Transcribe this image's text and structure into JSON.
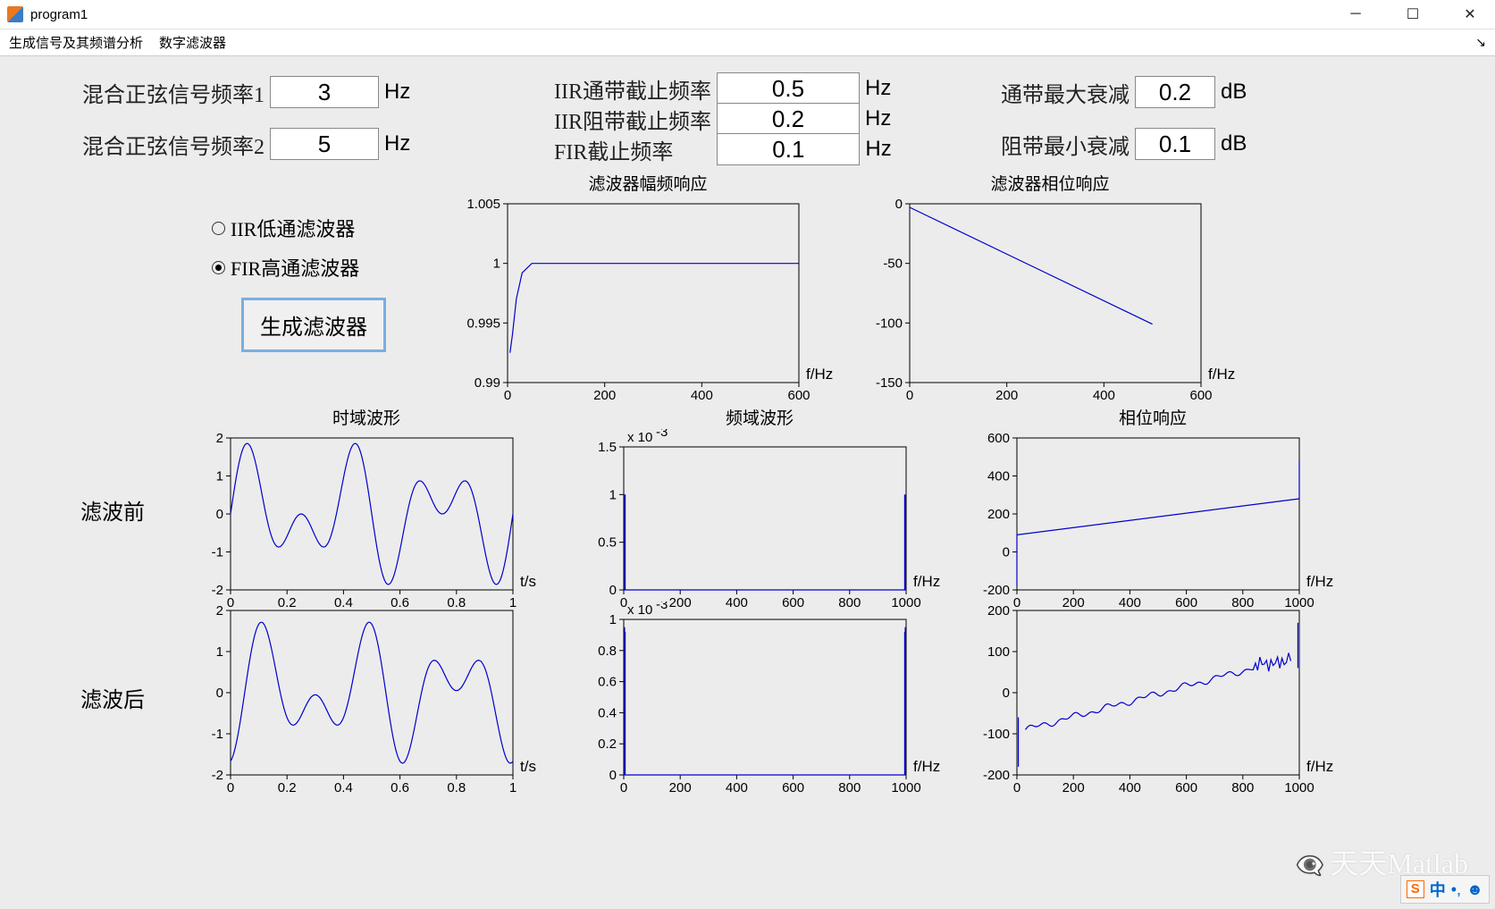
{
  "window": {
    "title": "program1"
  },
  "menu": {
    "item1": "生成信号及其频谱分析",
    "item2": "数字滤波器"
  },
  "params": {
    "freq1_label": "混合正弦信号频率1",
    "freq1_value": "3",
    "freq1_unit": "Hz",
    "freq2_label": "混合正弦信号频率2",
    "freq2_value": "5",
    "freq2_unit": "Hz",
    "iir_pass_label": "IIR通带截止频率",
    "iir_pass_value": "0.5",
    "iir_pass_unit": "Hz",
    "iir_stop_label": "IIR阻带截止频率",
    "iir_stop_value": "0.2",
    "iir_stop_unit": "Hz",
    "fir_label": "FIR截止频率",
    "fir_value": "0.1",
    "fir_unit": "Hz",
    "pass_att_label": "通带最大衰减",
    "pass_att_value": "0.2",
    "pass_att_unit": "dB",
    "stop_att_label": "阻带最小衰减",
    "stop_att_value": "0.1",
    "stop_att_unit": "dB"
  },
  "controls": {
    "radio_iir": "IIR低通滤波器",
    "radio_fir": "FIR高通滤波器",
    "radio_selected": "fir",
    "gen_button": "生成滤波器"
  },
  "row_labels": {
    "before": "滤波前",
    "after": "滤波后"
  },
  "charts": {
    "mag": {
      "title": "滤波器幅频响应",
      "xlabel": "f/Hz",
      "xlim": [
        0,
        600
      ],
      "xticks": [
        0,
        200,
        400,
        600
      ],
      "ylim": [
        0.99,
        1.005
      ],
      "yticks": [
        0.99,
        0.995,
        1,
        1.005
      ],
      "line_color": "#0000cd",
      "box_color": "#000",
      "data": [
        [
          5,
          0.9925
        ],
        [
          10,
          0.994
        ],
        [
          18,
          0.997
        ],
        [
          30,
          0.9992
        ],
        [
          50,
          1.0
        ],
        [
          100,
          1.0
        ],
        [
          200,
          1.0
        ],
        [
          300,
          1.0
        ],
        [
          400,
          1.0
        ],
        [
          500,
          1.0
        ],
        [
          600,
          1.0
        ]
      ]
    },
    "phase": {
      "title": "滤波器相位响应",
      "xlabel": "f/Hz",
      "xlim": [
        0,
        600
      ],
      "xticks": [
        0,
        200,
        400,
        600
      ],
      "ylim": [
        -150,
        0
      ],
      "yticks": [
        -150,
        -100,
        -50,
        0
      ],
      "line_color": "#0000cd",
      "data": [
        [
          0,
          -3
        ],
        [
          500,
          -101
        ]
      ]
    },
    "time_before": {
      "title": "时域波形",
      "xlabel": "t/s",
      "xlim": [
        0,
        1
      ],
      "xticks": [
        0,
        0.2,
        0.4,
        0.6,
        0.8,
        1
      ],
      "ylim": [
        -2,
        2
      ],
      "yticks": [
        -2,
        -1,
        0,
        1,
        2
      ],
      "line_color": "#0000cd",
      "type": "sin3+sin5",
      "amp1": 1,
      "f1": 3,
      "amp2": 1,
      "f2": 5,
      "samples": 200
    },
    "time_after": {
      "xlabel": "t/s",
      "xlim": [
        0,
        1
      ],
      "xticks": [
        0,
        0.2,
        0.4,
        0.6,
        0.8,
        1
      ],
      "ylim": [
        -2,
        2
      ],
      "yticks": [
        -2,
        -1,
        0,
        1,
        2
      ],
      "line_color": "#0000cd",
      "type": "sin3+sin5_shift",
      "amp1": 0.95,
      "f1": 3,
      "amp2": 0.9,
      "f2": 5,
      "phase": 0.05,
      "samples": 200
    },
    "freq_before": {
      "title": "频域波形",
      "xlabel": "f/Hz",
      "yexp": "x 10",
      "yexp_sup": "-3",
      "xlim": [
        0,
        1000
      ],
      "xticks": [
        0,
        200,
        400,
        600,
        800,
        1000
      ],
      "ylim": [
        0,
        1.5
      ],
      "yticks": [
        0,
        0.5,
        1,
        1.5
      ],
      "line_color": "#0000cd",
      "spikes": [
        [
          3,
          1.0
        ],
        [
          5,
          1.0
        ],
        [
          995,
          1.0
        ],
        [
          997,
          1.0
        ]
      ]
    },
    "freq_after": {
      "xlabel": "f/Hz",
      "yexp": "x 10",
      "yexp_sup": "-3",
      "xlim": [
        0,
        1000
      ],
      "xticks": [
        0,
        200,
        400,
        600,
        800,
        1000
      ],
      "ylim": [
        0,
        1
      ],
      "yticks": [
        0,
        0.2,
        0.4,
        0.6,
        0.8,
        1
      ],
      "line_color": "#0000cd",
      "spikes": [
        [
          3,
          0.95
        ],
        [
          5,
          0.92
        ],
        [
          995,
          0.92
        ],
        [
          997,
          0.95
        ]
      ]
    },
    "phresp_before": {
      "title": "相位响应",
      "xlabel": "f/Hz",
      "xlim": [
        0,
        1000
      ],
      "xticks": [
        0,
        200,
        400,
        600,
        800,
        1000
      ],
      "ylim": [
        -200,
        600
      ],
      "yticks": [
        -200,
        0,
        200,
        400,
        600
      ],
      "line_color": "#0000cd",
      "data_line": [
        [
          0,
          90
        ],
        [
          1000,
          280
        ]
      ],
      "end_spikes": [
        [
          0,
          -180,
          90
        ],
        [
          1000,
          280,
          480
        ]
      ]
    },
    "phresp_after": {
      "xlabel": "f/Hz",
      "xlim": [
        0,
        1000
      ],
      "xticks": [
        0,
        200,
        400,
        600,
        800,
        1000
      ],
      "ylim": [
        -200,
        200
      ],
      "yticks": [
        -200,
        -100,
        0,
        100,
        200
      ],
      "line_color": "#0000cd",
      "data_noisy_line": {
        "start": [
          30,
          -90
        ],
        "end": [
          970,
          85
        ],
        "noise": 12,
        "osc_end": true
      },
      "end_spikes": [
        [
          5,
          -180,
          -60
        ],
        [
          995,
          60,
          170
        ]
      ]
    }
  },
  "watermark": "天天Matlab",
  "ime": {
    "char": "中"
  }
}
